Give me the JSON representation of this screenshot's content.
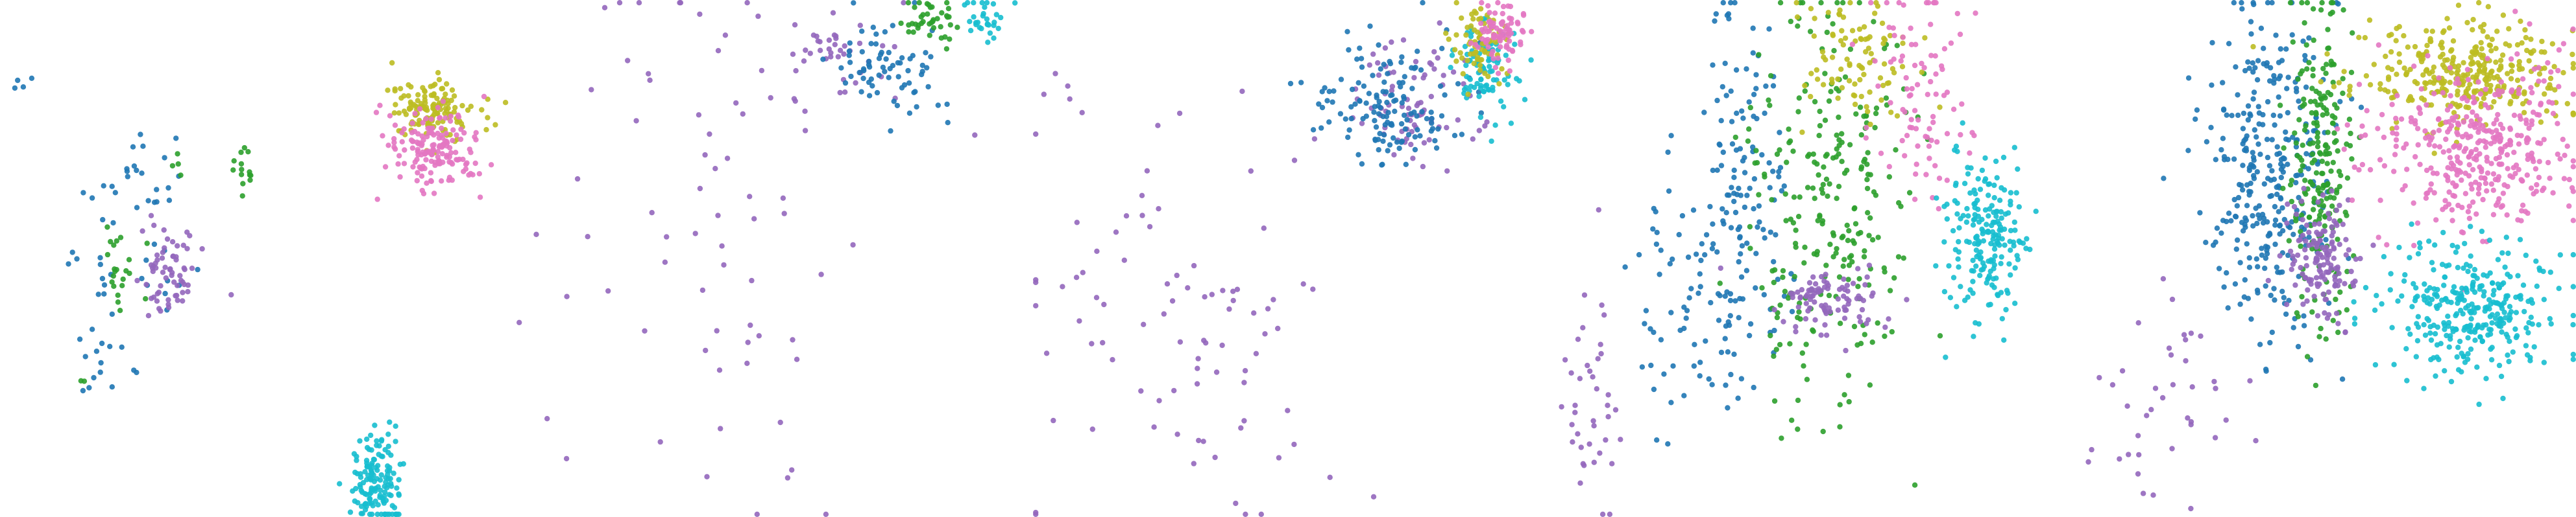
{
  "figure": {
    "title": "",
    "panel_count": 5
  },
  "chart_data": [
    {
      "type": "scatter",
      "title": "",
      "xlabel": "",
      "ylabel": "",
      "axes": "hidden",
      "grid": false,
      "legend": "none",
      "xlim": [
        0,
        1
      ],
      "ylim": [
        0,
        1
      ],
      "series": [
        {
          "color": "#1f77b4",
          "clusters": [
            {
              "cx": 0.25,
              "cy": 0.52,
              "sx": 0.07,
              "sy": 0.14,
              "n": 38
            },
            {
              "cx": 0.18,
              "cy": 0.3,
              "sx": 0.03,
              "sy": 0.05,
              "n": 12
            },
            {
              "cx": 0.05,
              "cy": 0.84,
              "sx": 0.02,
              "sy": 0.02,
              "n": 4
            },
            {
              "cx": 0.28,
              "cy": 0.66,
              "sx": 0.04,
              "sy": 0.04,
              "n": 12
            }
          ]
        },
        {
          "color": "#2ca02c",
          "clusters": [
            {
              "cx": 0.48,
              "cy": 0.67,
              "sx": 0.015,
              "sy": 0.03,
              "n": 14
            },
            {
              "cx": 0.23,
              "cy": 0.48,
              "sx": 0.025,
              "sy": 0.04,
              "n": 22
            },
            {
              "cx": 0.35,
              "cy": 0.69,
              "sx": 0.01,
              "sy": 0.02,
              "n": 4
            },
            {
              "cx": 0.15,
              "cy": 0.26,
              "sx": 0.01,
              "sy": 0.01,
              "n": 2
            }
          ]
        },
        {
          "color": "#9467bd",
          "clusters": [
            {
              "cx": 0.33,
              "cy": 0.48,
              "sx": 0.03,
              "sy": 0.05,
              "n": 65
            }
          ]
        },
        {
          "color": "#bcbd22",
          "clusters": [
            {
              "cx": 0.85,
              "cy": 0.79,
              "sx": 0.04,
              "sy": 0.03,
              "n": 140
            }
          ]
        },
        {
          "color": "#e377c2",
          "clusters": [
            {
              "cx": 0.85,
              "cy": 0.71,
              "sx": 0.045,
              "sy": 0.04,
              "n": 160
            }
          ]
        },
        {
          "color": "#17becf",
          "clusters": [
            {
              "cx": 0.74,
              "cy": 0.06,
              "sx": 0.025,
              "sy": 0.05,
              "n": 140
            }
          ]
        }
      ]
    },
    {
      "type": "scatter",
      "title": "",
      "xlabel": "",
      "ylabel": "",
      "axes": "hidden",
      "grid": false,
      "legend": "none",
      "xlim": [
        0,
        1
      ],
      "ylim": [
        0,
        1
      ],
      "series": [
        {
          "color": "#9467bd",
          "clusters": [
            {
              "cx": 0.4,
              "cy": 0.55,
              "sx": 0.2,
              "sy": 0.28,
              "n": 70
            },
            {
              "cx": 0.62,
              "cy": 0.9,
              "sx": 0.06,
              "sy": 0.05,
              "n": 40
            }
          ]
        },
        {
          "color": "#1f77b4",
          "clusters": [
            {
              "cx": 0.72,
              "cy": 0.88,
              "sx": 0.06,
              "sy": 0.05,
              "n": 70
            }
          ]
        },
        {
          "color": "#2ca02c",
          "clusters": [
            {
              "cx": 0.82,
              "cy": 0.96,
              "sx": 0.03,
              "sy": 0.02,
              "n": 40
            }
          ]
        },
        {
          "color": "#17becf",
          "clusters": [
            {
              "cx": 0.92,
              "cy": 0.97,
              "sx": 0.02,
              "sy": 0.02,
              "n": 30
            }
          ]
        }
      ]
    },
    {
      "type": "scatter",
      "title": "",
      "xlabel": "",
      "ylabel": "",
      "axes": "hidden",
      "grid": false,
      "legend": "none",
      "xlim": [
        0,
        1
      ],
      "ylim": [
        0,
        1
      ],
      "series": [
        {
          "color": "#9467bd",
          "clusters": [
            {
              "cx": 0.3,
              "cy": 0.4,
              "sx": 0.18,
              "sy": 0.25,
              "n": 90
            },
            {
              "cx": 0.75,
              "cy": 0.8,
              "sx": 0.06,
              "sy": 0.06,
              "n": 80
            }
          ]
        },
        {
          "color": "#1f77b4",
          "clusters": [
            {
              "cx": 0.7,
              "cy": 0.8,
              "sx": 0.08,
              "sy": 0.07,
              "n": 140
            }
          ]
        },
        {
          "color": "#17becf",
          "clusters": [
            {
              "cx": 0.9,
              "cy": 0.87,
              "sx": 0.03,
              "sy": 0.05,
              "n": 90
            }
          ]
        },
        {
          "color": "#bcbd22",
          "clusters": [
            {
              "cx": 0.88,
              "cy": 0.92,
              "sx": 0.03,
              "sy": 0.04,
              "n": 70
            }
          ]
        },
        {
          "color": "#e377c2",
          "clusters": [
            {
              "cx": 0.92,
              "cy": 0.94,
              "sx": 0.025,
              "sy": 0.03,
              "n": 80
            }
          ]
        }
      ]
    },
    {
      "type": "scatter",
      "title": "",
      "xlabel": "",
      "ylabel": "",
      "axes": "hidden",
      "grid": false,
      "legend": "none",
      "xlim": [
        0,
        1
      ],
      "ylim": [
        0,
        1
      ],
      "series": [
        {
          "color": "#1f77b4",
          "clusters": [
            {
              "cx": 0.38,
              "cy": 0.62,
              "sx": 0.04,
              "sy": 0.18,
              "n": 140
            },
            {
              "cx": 0.25,
              "cy": 0.45,
              "sx": 0.05,
              "sy": 0.15,
              "n": 60
            }
          ]
        },
        {
          "color": "#2ca02c",
          "clusters": [
            {
              "cx": 0.55,
              "cy": 0.6,
              "sx": 0.08,
              "sy": 0.2,
              "n": 260
            }
          ]
        },
        {
          "color": "#9467bd",
          "clusters": [
            {
              "cx": 0.55,
              "cy": 0.42,
              "sx": 0.06,
              "sy": 0.03,
              "n": 90
            },
            {
              "cx": 0.08,
              "cy": 0.25,
              "sx": 0.03,
              "sy": 0.15,
              "n": 40
            }
          ]
        },
        {
          "color": "#bcbd22",
          "clusters": [
            {
              "cx": 0.6,
              "cy": 0.9,
              "sx": 0.06,
              "sy": 0.06,
              "n": 90
            }
          ]
        },
        {
          "color": "#e377c2",
          "clusters": [
            {
              "cx": 0.72,
              "cy": 0.8,
              "sx": 0.06,
              "sy": 0.12,
              "n": 90
            }
          ]
        },
        {
          "color": "#17becf",
          "clusters": [
            {
              "cx": 0.86,
              "cy": 0.55,
              "sx": 0.04,
              "sy": 0.08,
              "n": 200
            }
          ]
        }
      ]
    },
    {
      "type": "scatter",
      "title": "",
      "xlabel": "",
      "ylabel": "",
      "axes": "hidden",
      "grid": false,
      "legend": "none",
      "xlim": [
        0,
        1
      ],
      "ylim": [
        0,
        1
      ],
      "series": [
        {
          "color": "#1f77b4",
          "clusters": [
            {
              "cx": 0.4,
              "cy": 0.65,
              "sx": 0.06,
              "sy": 0.16,
              "n": 320
            }
          ]
        },
        {
          "color": "#2ca02c",
          "clusters": [
            {
              "cx": 0.5,
              "cy": 0.7,
              "sx": 0.03,
              "sy": 0.16,
              "n": 220
            }
          ]
        },
        {
          "color": "#9467bd",
          "clusters": [
            {
              "cx": 0.5,
              "cy": 0.5,
              "sx": 0.04,
              "sy": 0.06,
              "n": 140
            },
            {
              "cx": 0.2,
              "cy": 0.2,
              "sx": 0.08,
              "sy": 0.1,
              "n": 40
            }
          ]
        },
        {
          "color": "#bcbd22",
          "clusters": [
            {
              "cx": 0.78,
              "cy": 0.86,
              "sx": 0.1,
              "sy": 0.05,
              "n": 330
            }
          ]
        },
        {
          "color": "#e377c2",
          "clusters": [
            {
              "cx": 0.8,
              "cy": 0.72,
              "sx": 0.1,
              "sy": 0.08,
              "n": 380
            }
          ]
        },
        {
          "color": "#17becf",
          "clusters": [
            {
              "cx": 0.8,
              "cy": 0.4,
              "sx": 0.08,
              "sy": 0.07,
              "n": 320
            }
          ]
        }
      ]
    }
  ]
}
